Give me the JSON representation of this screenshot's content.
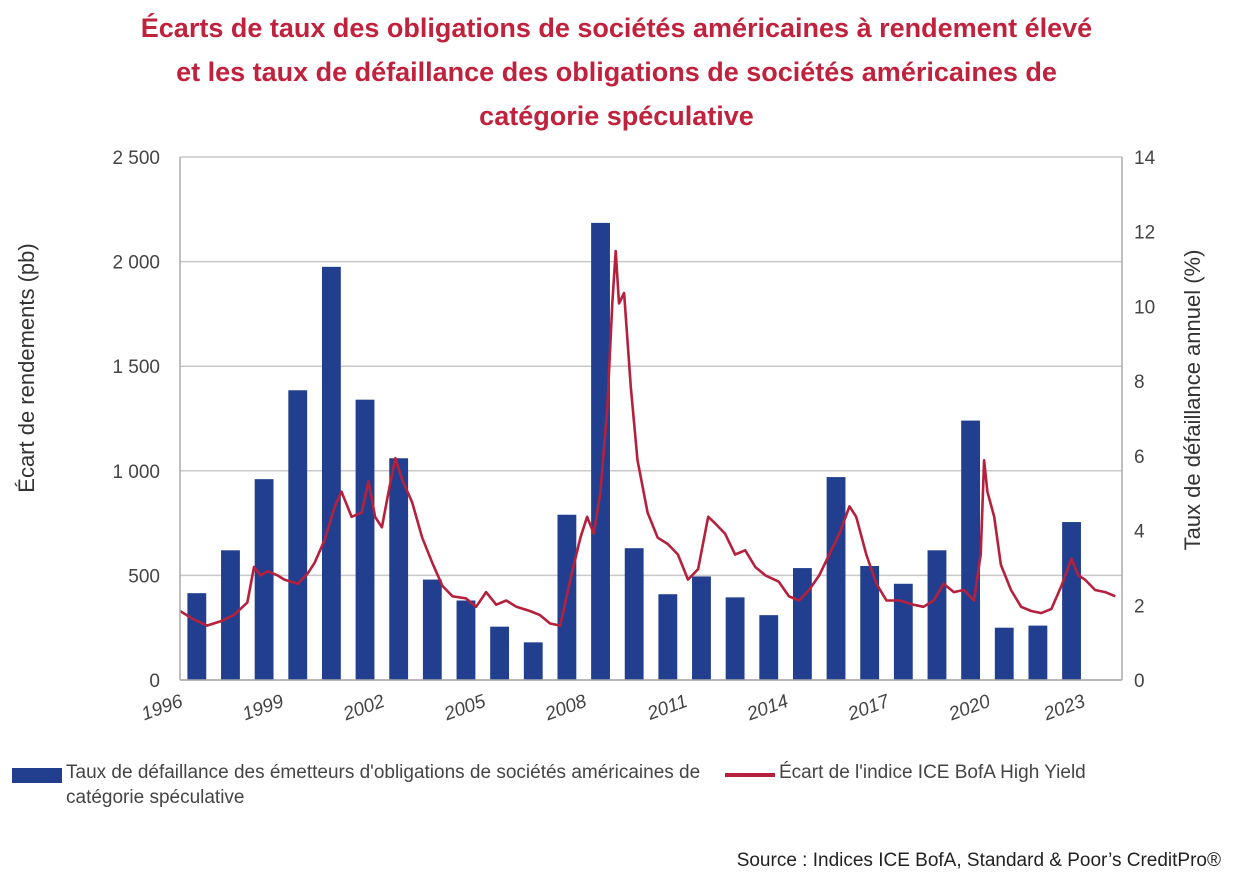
{
  "chart_data": {
    "type": "bar",
    "title_lines": [
      "Écarts de taux des obligations de sociétés américaines à rendement élevé",
      "et les taux de défaillance des obligations de sociétés américaines de",
      "catégorie spéculative"
    ],
    "ylabel_left": "Écart de rendements (pb)",
    "ylabel_right": "Taux de défaillance annuel (%)",
    "y_left_range": [
      0,
      2500
    ],
    "y_right_range": [
      0,
      14
    ],
    "y_left_ticks": [
      "0",
      "500",
      "1 000",
      "1 500",
      "2 000",
      "2 500"
    ],
    "y_right_ticks": [
      "0",
      "2",
      "4",
      "6",
      "8",
      "10",
      "12",
      "14"
    ],
    "x_tick_labels": [
      "1996",
      "1999",
      "2002",
      "2005",
      "2008",
      "2011",
      "2014",
      "2017",
      "2020",
      "2023"
    ],
    "categories": [
      "1996",
      "1997",
      "1998",
      "1999",
      "2000",
      "2001",
      "2002",
      "2003",
      "2004",
      "2005",
      "2006",
      "2007",
      "2008",
      "2009",
      "2010",
      "2011",
      "2012",
      "2013",
      "2014",
      "2015",
      "2016",
      "2017",
      "2018",
      "2019",
      "2020",
      "2021",
      "2022",
      "2023"
    ],
    "bar_series": {
      "name": "Taux de défaillance des émetteurs d'obligations de sociétés américaines de catégorie spéculative",
      "values_left_units": [
        415,
        620,
        960,
        1385,
        1975,
        1340,
        1060,
        480,
        380,
        255,
        180,
        790,
        2185,
        630,
        410,
        495,
        395,
        310,
        535,
        970,
        545,
        460,
        620,
        1240,
        250,
        260,
        755,
        0
      ]
    },
    "line_series": {
      "name": "Écart de l'indice ICE BofA High Yield",
      "points_left_units": [
        [
          1996.0,
          330
        ],
        [
          1996.4,
          290
        ],
        [
          1996.8,
          260
        ],
        [
          1997.2,
          280
        ],
        [
          1997.6,
          310
        ],
        [
          1998.0,
          370
        ],
        [
          1998.2,
          540
        ],
        [
          1998.4,
          500
        ],
        [
          1998.6,
          520
        ],
        [
          1998.9,
          500
        ],
        [
          1999.1,
          480
        ],
        [
          1999.5,
          460
        ],
        [
          1999.8,
          510
        ],
        [
          2000.0,
          560
        ],
        [
          2000.3,
          670
        ],
        [
          2000.6,
          830
        ],
        [
          2000.8,
          900
        ],
        [
          2001.1,
          780
        ],
        [
          2001.4,
          800
        ],
        [
          2001.6,
          950
        ],
        [
          2001.8,
          780
        ],
        [
          2002.0,
          730
        ],
        [
          2002.2,
          900
        ],
        [
          2002.4,
          1060
        ],
        [
          2002.6,
          960
        ],
        [
          2002.9,
          850
        ],
        [
          2003.2,
          680
        ],
        [
          2003.5,
          560
        ],
        [
          2003.8,
          450
        ],
        [
          2004.1,
          400
        ],
        [
          2004.5,
          390
        ],
        [
          2004.8,
          350
        ],
        [
          2005.1,
          420
        ],
        [
          2005.4,
          360
        ],
        [
          2005.7,
          380
        ],
        [
          2006.0,
          350
        ],
        [
          2006.4,
          330
        ],
        [
          2006.7,
          310
        ],
        [
          2007.0,
          270
        ],
        [
          2007.3,
          260
        ],
        [
          2007.6,
          480
        ],
        [
          2007.9,
          680
        ],
        [
          2008.1,
          780
        ],
        [
          2008.3,
          700
        ],
        [
          2008.5,
          900
        ],
        [
          2008.7,
          1300
        ],
        [
          2008.85,
          1800
        ],
        [
          2008.95,
          2050
        ],
        [
          2009.05,
          1800
        ],
        [
          2009.2,
          1850
        ],
        [
          2009.4,
          1400
        ],
        [
          2009.6,
          1050
        ],
        [
          2009.9,
          800
        ],
        [
          2010.2,
          680
        ],
        [
          2010.5,
          650
        ],
        [
          2010.8,
          600
        ],
        [
          2011.1,
          480
        ],
        [
          2011.4,
          530
        ],
        [
          2011.7,
          780
        ],
        [
          2011.9,
          750
        ],
        [
          2012.2,
          700
        ],
        [
          2012.5,
          600
        ],
        [
          2012.8,
          620
        ],
        [
          2013.1,
          540
        ],
        [
          2013.4,
          500
        ],
        [
          2013.8,
          470
        ],
        [
          2014.1,
          400
        ],
        [
          2014.4,
          380
        ],
        [
          2014.7,
          430
        ],
        [
          2015.0,
          500
        ],
        [
          2015.3,
          600
        ],
        [
          2015.6,
          700
        ],
        [
          2015.9,
          830
        ],
        [
          2016.1,
          780
        ],
        [
          2016.4,
          600
        ],
        [
          2016.7,
          460
        ],
        [
          2017.0,
          380
        ],
        [
          2017.4,
          380
        ],
        [
          2017.8,
          360
        ],
        [
          2018.1,
          350
        ],
        [
          2018.4,
          380
        ],
        [
          2018.7,
          460
        ],
        [
          2019.0,
          420
        ],
        [
          2019.3,
          430
        ],
        [
          2019.6,
          380
        ],
        [
          2019.8,
          600
        ],
        [
          2019.9,
          1050
        ],
        [
          2020.0,
          900
        ],
        [
          2020.2,
          780
        ],
        [
          2020.4,
          550
        ],
        [
          2020.7,
          430
        ],
        [
          2021.0,
          350
        ],
        [
          2021.3,
          330
        ],
        [
          2021.6,
          320
        ],
        [
          2021.9,
          340
        ],
        [
          2022.2,
          450
        ],
        [
          2022.5,
          580
        ],
        [
          2022.7,
          500
        ],
        [
          2022.9,
          480
        ],
        [
          2023.2,
          430
        ],
        [
          2023.5,
          420
        ],
        [
          2023.8,
          400
        ]
      ]
    }
  },
  "legend": {
    "bar_label": "Taux de défaillance des émetteurs d'obligations de sociétés américaines de catégorie spéculative",
    "line_label": "Écart de l'indice ICE BofA High Yield"
  },
  "source": "Source : Indices ICE BofA, Standard & Poor’s CreditPro®",
  "colors": {
    "bar": "#213f8e",
    "line": "#b5203d",
    "title": "#c0213c",
    "grid": "#c9c9c9"
  }
}
